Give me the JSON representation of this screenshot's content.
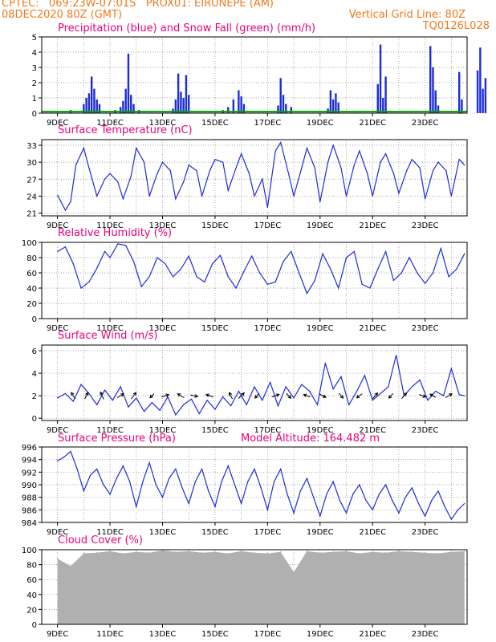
{
  "header": {
    "line1_left": "CPTEC:   069:23W-07:01S   PROX01: EIRUNEPE (AM)",
    "line2_left": "08DEC2020 80Z (GMT)",
    "line2_right": "Vertical Grid Line: 80Z",
    "line3_right": "TQ0126L028"
  },
  "colors": {
    "header": "#f07818",
    "panel_title": "#e8007a",
    "series_blue": "#1c2cd8",
    "snow_green": "#00a000",
    "cloud_gray": "#b0b0b0",
    "grid": "#888888"
  },
  "shared_x_tick_labels": [
    "9DEC",
    "11DEC",
    "13DEC",
    "15DEC",
    "17DEC",
    "19DEC",
    "21DEC",
    "23DEC"
  ],
  "model_altitude": "Model Altitude: 164.482 m",
  "chart_data": [
    {
      "id": "precip",
      "type": "bar",
      "title": "Precipitation (blue) and Snow Fall (green) (mm/h)",
      "ylim": [
        0,
        5
      ],
      "yticks": [
        "0",
        "1",
        "2",
        "3",
        "4",
        "5"
      ],
      "grid": true,
      "series": [
        {
          "name": "Precipitation",
          "color": "#1c2cd8",
          "bars": [
            [
              0.5,
              0.2
            ],
            [
              1.0,
              0.6
            ],
            [
              1.1,
              1.0
            ],
            [
              1.2,
              1.3
            ],
            [
              1.3,
              2.4
            ],
            [
              1.4,
              1.6
            ],
            [
              1.5,
              0.9
            ],
            [
              1.6,
              0.6
            ],
            [
              2.2,
              0.2
            ],
            [
              2.4,
              0.4
            ],
            [
              2.5,
              0.8
            ],
            [
              2.6,
              1.6
            ],
            [
              2.7,
              3.9
            ],
            [
              2.8,
              1.2
            ],
            [
              2.9,
              0.6
            ],
            [
              3.1,
              0.2
            ],
            [
              4.4,
              0.3
            ],
            [
              4.5,
              0.9
            ],
            [
              4.6,
              2.6
            ],
            [
              4.7,
              1.4
            ],
            [
              4.8,
              1.0
            ],
            [
              4.9,
              2.5
            ],
            [
              5.0,
              1.2
            ],
            [
              6.3,
              0.2
            ],
            [
              6.5,
              0.4
            ],
            [
              6.7,
              0.9
            ],
            [
              6.9,
              1.5
            ],
            [
              7.0,
              1.1
            ],
            [
              7.1,
              0.6
            ],
            [
              8.4,
              0.5
            ],
            [
              8.5,
              2.3
            ],
            [
              8.6,
              1.2
            ],
            [
              8.7,
              0.6
            ],
            [
              8.9,
              0.4
            ],
            [
              10.3,
              0.3
            ],
            [
              10.4,
              1.5
            ],
            [
              10.5,
              0.9
            ],
            [
              10.6,
              1.3
            ],
            [
              10.7,
              0.7
            ],
            [
              12.2,
              1.9
            ],
            [
              12.3,
              4.5
            ],
            [
              12.4,
              1.0
            ],
            [
              12.5,
              2.4
            ],
            [
              14.2,
              4.4
            ],
            [
              14.3,
              3.0
            ],
            [
              14.4,
              1.5
            ],
            [
              14.5,
              0.5
            ],
            [
              15.3,
              2.7
            ],
            [
              15.4,
              0.9
            ],
            [
              16.0,
              2.8
            ],
            [
              16.1,
              4.3
            ],
            [
              16.2,
              1.6
            ],
            [
              16.3,
              2.3
            ]
          ]
        },
        {
          "name": "Snow Fall",
          "color": "#00a000",
          "line_value": 0.1
        }
      ]
    },
    {
      "id": "temp",
      "type": "line",
      "title": "Surface Temperature (nC)",
      "ylim": [
        20.5,
        34
      ],
      "yticks": [
        "21",
        "24",
        "27",
        "30",
        "33"
      ],
      "grid": true,
      "x": [
        0,
        0.3,
        0.5,
        0.7,
        1.0,
        1.2,
        1.5,
        1.8,
        2.0,
        2.3,
        2.5,
        2.8,
        3.0,
        3.3,
        3.5,
        3.8,
        4.0,
        4.3,
        4.5,
        4.8,
        5.0,
        5.3,
        5.5,
        5.8,
        6.0,
        6.3,
        6.5,
        6.8,
        7.0,
        7.3,
        7.5,
        7.8,
        8.0,
        8.3,
        8.5,
        8.8,
        9.0,
        9.3,
        9.5,
        9.8,
        10.0,
        10.3,
        10.5,
        10.8,
        11.0,
        11.3,
        11.5,
        11.8,
        12.0,
        12.3,
        12.5,
        12.8,
        13.0,
        13.3,
        13.5,
        13.8,
        14.0,
        14.3,
        14.5,
        14.8,
        15.0,
        15.3,
        15.5
      ],
      "values": [
        24.2,
        21.5,
        23.0,
        29.5,
        32.5,
        29.0,
        24.0,
        27.0,
        28.0,
        26.5,
        23.5,
        27.5,
        32.5,
        30.0,
        24.0,
        28.0,
        30.0,
        28.5,
        23.5,
        26.5,
        29.5,
        28.5,
        24.0,
        28.5,
        30.5,
        30.0,
        25.0,
        29.0,
        31.5,
        28.0,
        24.0,
        27.0,
        22.0,
        32.0,
        33.5,
        28.0,
        24.0,
        29.0,
        32.5,
        29.0,
        23.0,
        30.0,
        33.0,
        29.0,
        24.0,
        29.5,
        32.0,
        28.0,
        24.0,
        30.0,
        31.5,
        28.0,
        24.5,
        28.5,
        30.5,
        29.0,
        23.5,
        28.5,
        30.0,
        28.5,
        24.0,
        30.5,
        29.5
      ]
    },
    {
      "id": "rh",
      "type": "line",
      "title": "Relative Humidity (%)",
      "ylim": [
        0,
        100
      ],
      "yticks": [
        "0",
        "20",
        "40",
        "60",
        "80",
        "100"
      ],
      "grid": true,
      "x": [
        0,
        0.3,
        0.6,
        0.9,
        1.2,
        1.5,
        1.8,
        2.0,
        2.3,
        2.6,
        2.9,
        3.2,
        3.5,
        3.8,
        4.1,
        4.4,
        4.7,
        5.0,
        5.3,
        5.6,
        5.9,
        6.2,
        6.5,
        6.8,
        7.1,
        7.4,
        7.7,
        8.0,
        8.3,
        8.6,
        8.9,
        9.2,
        9.5,
        9.8,
        10.1,
        10.4,
        10.7,
        11.0,
        11.3,
        11.6,
        11.9,
        12.2,
        12.5,
        12.8,
        13.1,
        13.4,
        13.7,
        14.0,
        14.3,
        14.6,
        14.9,
        15.2,
        15.5
      ],
      "values": [
        88,
        94,
        72,
        40,
        48,
        66,
        88,
        80,
        98,
        96,
        75,
        42,
        55,
        80,
        72,
        55,
        65,
        82,
        55,
        48,
        72,
        83,
        55,
        40,
        62,
        82,
        60,
        45,
        48,
        75,
        88,
        60,
        33,
        50,
        85,
        65,
        40,
        80,
        88,
        45,
        40,
        65,
        88,
        50,
        60,
        80,
        60,
        46,
        60,
        92,
        55,
        65,
        85
      ]
    },
    {
      "id": "wind",
      "type": "line",
      "title": "Surface Wind (m/s)",
      "ylim": [
        -0.2,
        6.5
      ],
      "yticks": [
        "0",
        "2",
        "4",
        "6"
      ],
      "grid": true,
      "x": [
        0,
        0.3,
        0.6,
        0.9,
        1.2,
        1.5,
        1.8,
        2.1,
        2.4,
        2.7,
        3.0,
        3.3,
        3.6,
        3.9,
        4.2,
        4.5,
        4.8,
        5.1,
        5.4,
        5.7,
        6.0,
        6.3,
        6.6,
        6.9,
        7.2,
        7.5,
        7.8,
        8.1,
        8.4,
        8.7,
        9.0,
        9.3,
        9.6,
        9.9,
        10.2,
        10.5,
        10.8,
        11.1,
        11.4,
        11.7,
        12.0,
        12.3,
        12.6,
        12.9,
        13.2,
        13.5,
        13.8,
        14.1,
        14.4,
        14.7,
        15.0,
        15.3,
        15.5
      ],
      "values": [
        1.8,
        2.2,
        1.5,
        3.0,
        2.2,
        1.2,
        2.5,
        1.6,
        2.8,
        1.0,
        1.8,
        0.6,
        1.4,
        0.7,
        1.9,
        0.3,
        1.2,
        1.7,
        0.4,
        1.6,
        0.8,
        1.9,
        1.1,
        2.4,
        1.2,
        2.8,
        1.6,
        3.2,
        1.1,
        2.8,
        1.8,
        3.0,
        2.4,
        1.2,
        4.9,
        2.6,
        3.7,
        1.2,
        2.4,
        3.8,
        1.6,
        2.2,
        2.8,
        5.6,
        2.0,
        2.8,
        3.4,
        1.6,
        2.4,
        2.0,
        4.4,
        2.1,
        2.0
      ],
      "arrows": [
        {
          "x": 0.6,
          "u": -0.5,
          "v": 0.8
        },
        {
          "x": 1.1,
          "u": 0.4,
          "v": 0.8
        },
        {
          "x": 1.7,
          "u": -0.4,
          "v": 0.9
        },
        {
          "x": 2.4,
          "u": 0.8,
          "v": 0.5
        },
        {
          "x": 2.9,
          "u": 0.6,
          "v": 0.8
        },
        {
          "x": 3.6,
          "u": -0.5,
          "v": -0.5
        },
        {
          "x": 4.1,
          "u": 0.9,
          "v": 0.3
        },
        {
          "x": 4.7,
          "u": -0.8,
          "v": 0.5
        },
        {
          "x": 5.2,
          "u": 0.9,
          "v": -0.2
        },
        {
          "x": 5.8,
          "u": -0.9,
          "v": 0.3
        },
        {
          "x": 6.6,
          "u": -0.4,
          "v": 0.8
        },
        {
          "x": 7.0,
          "u": 0.7,
          "v": 0.7
        },
        {
          "x": 7.6,
          "u": -0.5,
          "v": -0.6
        },
        {
          "x": 8.3,
          "u": 0.9,
          "v": 0.3
        },
        {
          "x": 8.8,
          "u": 0.6,
          "v": -0.6
        },
        {
          "x": 9.5,
          "u": -0.8,
          "v": 0.3
        },
        {
          "x": 10.1,
          "u": 0.8,
          "v": -0.4
        },
        {
          "x": 10.8,
          "u": 0.5,
          "v": -0.6
        },
        {
          "x": 11.5,
          "u": -0.7,
          "v": -0.5
        },
        {
          "x": 12.1,
          "u": 0.6,
          "v": 0.7
        },
        {
          "x": 12.7,
          "u": -0.5,
          "v": -0.6
        },
        {
          "x": 13.2,
          "u": 0.6,
          "v": 0.7
        },
        {
          "x": 13.9,
          "u": 0.8,
          "v": -0.3
        },
        {
          "x": 14.3,
          "u": -0.7,
          "v": 0.4
        },
        {
          "x": 14.9,
          "u": 0.8,
          "v": 0.5
        }
      ]
    },
    {
      "id": "pressure",
      "type": "line",
      "title": "Surface Pressure (hPa)",
      "ylim": [
        984,
        996
      ],
      "yticks": [
        "984",
        "986",
        "988",
        "990",
        "992",
        "994",
        "996"
      ],
      "grid": true,
      "x": [
        0,
        0.25,
        0.5,
        0.75,
        1.0,
        1.25,
        1.5,
        1.75,
        2.0,
        2.25,
        2.5,
        2.75,
        3.0,
        3.25,
        3.5,
        3.75,
        4.0,
        4.25,
        4.5,
        4.75,
        5.0,
        5.25,
        5.5,
        5.75,
        6.0,
        6.25,
        6.5,
        6.75,
        7.0,
        7.25,
        7.5,
        7.75,
        8.0,
        8.25,
        8.5,
        8.75,
        9.0,
        9.25,
        9.5,
        9.75,
        10.0,
        10.25,
        10.5,
        10.75,
        11.0,
        11.25,
        11.5,
        11.75,
        12.0,
        12.25,
        12.5,
        12.75,
        13.0,
        13.25,
        13.5,
        13.75,
        14.0,
        14.25,
        14.5,
        14.75,
        15.0,
        15.25,
        15.5
      ],
      "values": [
        993.8,
        994.4,
        995.3,
        992.5,
        989.0,
        991.5,
        992.5,
        990.0,
        988.5,
        991.0,
        993.0,
        990.5,
        986.5,
        990.5,
        993.5,
        990.0,
        988.0,
        991.0,
        992.5,
        989.5,
        987.0,
        990.5,
        992.5,
        989.0,
        986.5,
        990.5,
        993.0,
        990.0,
        987.0,
        990.5,
        992.5,
        989.5,
        986.0,
        990.5,
        992.5,
        988.5,
        985.5,
        989.0,
        991.0,
        988.0,
        985.0,
        988.5,
        990.5,
        987.5,
        985.5,
        988.5,
        990.0,
        987.5,
        986.0,
        988.5,
        990.0,
        987.5,
        985.5,
        988.0,
        989.5,
        987.0,
        985.0,
        987.5,
        989.0,
        986.5,
        984.5,
        986.0,
        987.0
      ]
    },
    {
      "id": "cloud",
      "type": "area",
      "title": "Cloud Cover (%)",
      "ylim": [
        0,
        100
      ],
      "yticks": [
        "0",
        "20",
        "40",
        "60",
        "80",
        "100"
      ],
      "grid": true,
      "x": [
        0,
        0.5,
        1.0,
        1.5,
        2.0,
        2.5,
        3.0,
        3.5,
        4.0,
        4.5,
        5.0,
        5.5,
        6.0,
        6.5,
        7.0,
        7.5,
        8.0,
        8.5,
        9.0,
        9.5,
        10.0,
        10.5,
        11.0,
        11.5,
        12.0,
        12.5,
        13.0,
        13.5,
        14.0,
        14.5,
        15.0,
        15.5
      ],
      "values": [
        88,
        78,
        95,
        96,
        98,
        95,
        97,
        96,
        99,
        97,
        98,
        96,
        97,
        95,
        98,
        96,
        95,
        97,
        70,
        98,
        96,
        97,
        98,
        95,
        97,
        96,
        98,
        97,
        96,
        95,
        97,
        98
      ]
    }
  ]
}
